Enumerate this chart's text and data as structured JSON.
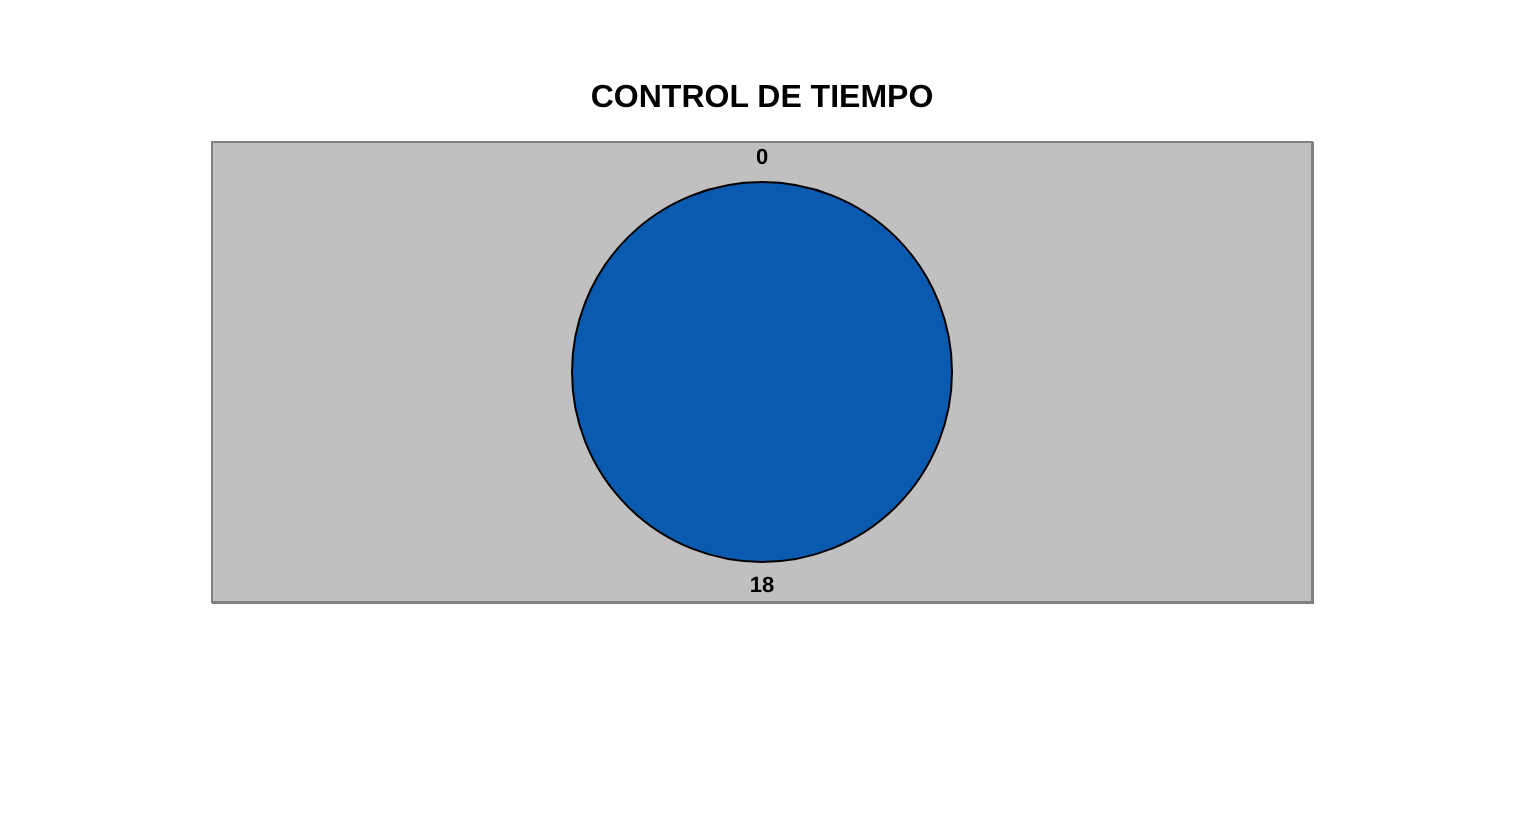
{
  "chart_data": {
    "type": "pie",
    "title": "CONTROL DE TIEMPO",
    "categories": [
      null,
      null
    ],
    "values": [
      0,
      18
    ],
    "colors": [
      "#00c040",
      "#0a5ab0"
    ],
    "value_labels": [
      "0",
      "18"
    ],
    "legend": false
  }
}
